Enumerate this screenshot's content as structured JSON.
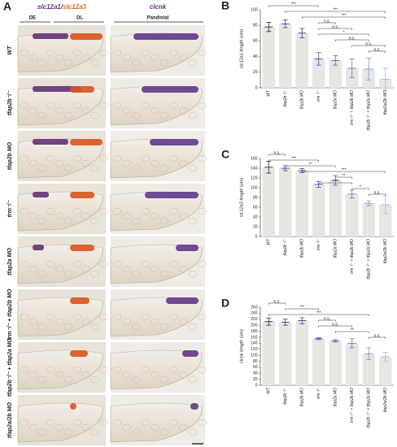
{
  "panel_a": {
    "label": "A",
    "stain_left": [
      "slc12a1",
      "/",
      "slc12a3"
    ],
    "stain_right": "clcnk",
    "segments": [
      "DE",
      "DL",
      "Pandistal"
    ],
    "rows": [
      "WT",
      "tfap2b⁻/⁻",
      "tfap2b MO",
      "trm⁻/⁻",
      "tfap2a MO",
      "trm⁻/⁻ + tfap2b MO",
      "tfap2b⁻/⁻ + tfap2a MO",
      "tfap2a/2b MO"
    ]
  },
  "chart_data": [
    {
      "type": "bar",
      "label": "B",
      "y_label": "slc12a1 length (um)",
      "categories": [
        "WT",
        "tfap2b⁻/⁻",
        "tfap2b MO",
        "trm⁻/⁻",
        "tfap2a MO",
        "trm⁻/⁻ + tfap2b MO",
        "tfap2b⁻/⁻ + tfap2a MO",
        "tfap2a/2b MO"
      ],
      "values": [
        78,
        82,
        70,
        37,
        35,
        25,
        24,
        11
      ],
      "errors": [
        6,
        5,
        6,
        8,
        6,
        12,
        14,
        14
      ],
      "color": "#e6e7e3",
      "point_colors": [
        "#111111",
        "#1f2e7a",
        "#1f2e7a",
        "#24409a",
        "#2e5bb5",
        "#4a6fc2",
        "#6a8ad0",
        "#9db1e0"
      ],
      "ylim": [
        0,
        100
      ],
      "yticks": [
        0,
        20,
        40,
        60,
        80,
        100
      ],
      "annotations": [
        {
          "from": 0,
          "to": 3,
          "label": "***"
        },
        {
          "from": 1,
          "to": 7,
          "label": "***"
        },
        {
          "from": 2,
          "to": 7,
          "label": "***"
        },
        {
          "from": 3,
          "to": 4,
          "label": "n.s."
        },
        {
          "from": 3,
          "to": 5,
          "label": "n.s."
        },
        {
          "from": 3,
          "to": 6,
          "label": "*"
        },
        {
          "from": 4,
          "to": 6,
          "label": "n.s."
        },
        {
          "from": 5,
          "to": 7,
          "label": "n.s."
        },
        {
          "from": 6,
          "to": 7,
          "label": "n.s."
        }
      ]
    },
    {
      "type": "bar",
      "label": "C",
      "y_label": "slc12a3 length (um)",
      "categories": [
        "WT",
        "tfap2b⁻/⁻",
        "tfap2b MO",
        "trm⁻/⁻",
        "tfap2a MO",
        "trm⁻/⁻ + tfap2b MO",
        "tfap2b⁻/⁻ + tfap2a MO",
        "tfap2a/2b MO"
      ],
      "values": [
        142,
        140,
        135,
        107,
        115,
        87,
        68,
        65
      ],
      "errors": [
        12,
        5,
        4,
        6,
        10,
        8,
        5,
        18
      ],
      "color": "#e6e7e3",
      "point_colors": [
        "#111111",
        "#1f2e7a",
        "#1f2e7a",
        "#24409a",
        "#2e5bb5",
        "#4a6fc2",
        "#6a8ad0",
        "#9db1e0"
      ],
      "ylim": [
        0,
        160
      ],
      "yticks": [
        0,
        20,
        40,
        60,
        80,
        100,
        120,
        140,
        160
      ],
      "annotations": [
        {
          "from": 0,
          "to": 1,
          "label": "n.s."
        },
        {
          "from": 0,
          "to": 3,
          "label": "***"
        },
        {
          "from": 1,
          "to": 4,
          "label": "**"
        },
        {
          "from": 2,
          "to": 7,
          "label": "***"
        },
        {
          "from": 4,
          "to": 5,
          "label": "**"
        },
        {
          "from": 3,
          "to": 5,
          "label": "***"
        },
        {
          "from": 5,
          "to": 6,
          "label": "*"
        },
        {
          "from": 6,
          "to": 7,
          "label": "n.s."
        }
      ]
    },
    {
      "type": "bar",
      "label": "D",
      "y_label": "clcnk length (um)",
      "categories": [
        "WT",
        "tfap2b⁻/⁻",
        "tfap2b MO",
        "trm⁻/⁻",
        "tfap2a MO",
        "trm⁻/⁻ + tfap2b MO",
        "tfap2b⁻/⁻ + tfap2a MO",
        "tfap2a/2b MO"
      ],
      "values": [
        212,
        210,
        215,
        155,
        148,
        140,
        105,
        95
      ],
      "errors": [
        12,
        10,
        10,
        3,
        4,
        15,
        20,
        15
      ],
      "color": "#e6e7e3",
      "point_colors": [
        "#111111",
        "#1f2e7a",
        "#1f2e7a",
        "#24409a",
        "#2e5bb5",
        "#4a6fc2",
        "#6a8ad0",
        "#9db1e0"
      ],
      "ylim": [
        0,
        260
      ],
      "yticks": [
        0,
        20,
        40,
        60,
        80,
        100,
        120,
        140,
        160,
        180,
        200,
        220,
        240,
        260
      ],
      "annotations": [
        {
          "from": 0,
          "to": 1,
          "label": "n.s."
        },
        {
          "from": 1,
          "to": 3,
          "label": "***"
        },
        {
          "from": 0,
          "to": 6,
          "label": "***"
        },
        {
          "from": 3,
          "to": 4,
          "label": "n.s."
        },
        {
          "from": 3,
          "to": 5,
          "label": "n.s."
        },
        {
          "from": 4,
          "to": 6,
          "label": "**"
        },
        {
          "from": 6,
          "to": 7,
          "label": "n.s."
        }
      ]
    }
  ]
}
